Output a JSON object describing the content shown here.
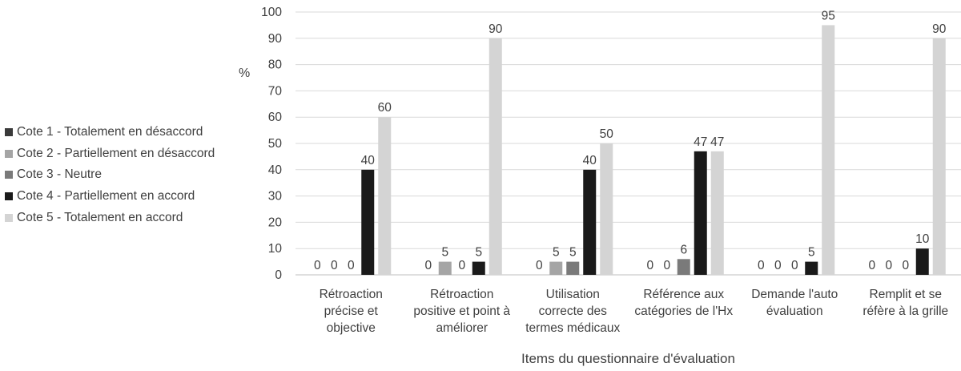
{
  "chart_data": {
    "type": "bar",
    "title": "",
    "xlabel": "Items du questionnaire d'évaluation",
    "ylabel": "%",
    "ylim": [
      0,
      100
    ],
    "yticks": [
      0,
      10,
      20,
      30,
      40,
      50,
      60,
      70,
      80,
      90,
      100
    ],
    "grid": true,
    "legend_position": "left",
    "categories": [
      "Rétroaction\nprécise et\nobjective",
      "Rétroaction\npositive et point à\naméliorer",
      "Utilisation\ncorrecte des\ntermes médicaux",
      "Référence aux\ncatégories de l'Hx",
      "Demande l'auto\névaluation",
      "Remplit et se\nréfère à la grille"
    ],
    "series": [
      {
        "name": "Cote 1 - Totalement en désaccord",
        "color": "#3a3a3a",
        "values": [
          0,
          0,
          0,
          0,
          0,
          0
        ]
      },
      {
        "name": "Cote 2 - Partiellement en désaccord",
        "color": "#a5a5a5",
        "values": [
          0,
          5,
          5,
          0,
          0,
          0
        ]
      },
      {
        "name": "Cote 3 - Neutre",
        "color": "#7a7a7a",
        "values": [
          0,
          0,
          5,
          6,
          0,
          0
        ]
      },
      {
        "name": "Cote 4 - Partiellement en accord",
        "color": "#1a1a1a",
        "values": [
          40,
          5,
          40,
          47,
          5,
          10
        ]
      },
      {
        "name": "Cote 5 - Totalement en accord",
        "color": "#d4d4d4",
        "values": [
          60,
          90,
          50,
          47,
          95,
          90
        ]
      }
    ],
    "data_labels": [
      [
        "0",
        "0",
        "0",
        "40",
        "60"
      ],
      [
        "0",
        "5",
        "0",
        "5",
        "90"
      ],
      [
        "0",
        "5",
        "5",
        "40",
        "50"
      ],
      [
        "0",
        "0",
        "6",
        "47",
        "47"
      ],
      [
        "0",
        "0",
        "0",
        "5",
        "95"
      ],
      [
        "0",
        "0",
        "0",
        "10",
        "90"
      ]
    ]
  }
}
